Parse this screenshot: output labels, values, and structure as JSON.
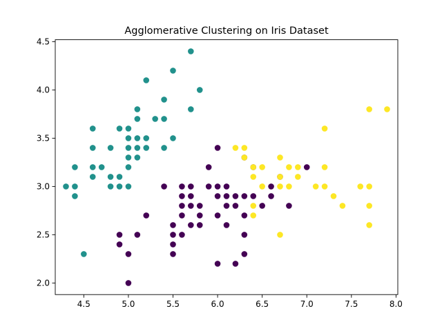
{
  "chart_data": {
    "type": "scatter",
    "title": "Agglomerative Clustering on Iris Dataset",
    "xlabel": "",
    "ylabel": "",
    "xlim": [
      4.18,
      8.02
    ],
    "ylim": [
      1.88,
      4.52
    ],
    "xticks": [
      4.5,
      5.0,
      5.5,
      6.0,
      6.5,
      7.0,
      7.5,
      8.0
    ],
    "yticks": [
      2.0,
      2.5,
      3.0,
      3.5,
      4.0,
      4.5
    ],
    "grid": false,
    "colors": [
      "#440154",
      "#21918c",
      "#fde725"
    ],
    "series": [
      {
        "cluster": 0,
        "points": [
          [
            4.9,
            2.5
          ],
          [
            4.9,
            2.4
          ],
          [
            5.0,
            2.3
          ],
          [
            5.0,
            2.0
          ],
          [
            5.1,
            2.5
          ],
          [
            5.2,
            2.7
          ],
          [
            5.4,
            3.0
          ],
          [
            5.5,
            2.3
          ],
          [
            5.5,
            2.4
          ],
          [
            5.5,
            2.5
          ],
          [
            5.5,
            2.6
          ],
          [
            5.6,
            2.5
          ],
          [
            5.6,
            2.7
          ],
          [
            5.6,
            2.8
          ],
          [
            5.6,
            2.9
          ],
          [
            5.6,
            3.0
          ],
          [
            5.7,
            2.6
          ],
          [
            5.7,
            2.8
          ],
          [
            5.7,
            2.9
          ],
          [
            5.7,
            3.0
          ],
          [
            5.8,
            2.6
          ],
          [
            5.8,
            2.7
          ],
          [
            5.8,
            2.8
          ],
          [
            5.9,
            3.0
          ],
          [
            5.9,
            3.2
          ],
          [
            6.0,
            2.2
          ],
          [
            6.0,
            2.7
          ],
          [
            6.0,
            2.9
          ],
          [
            6.0,
            3.0
          ],
          [
            6.0,
            3.4
          ],
          [
            6.1,
            2.6
          ],
          [
            6.1,
            2.8
          ],
          [
            6.1,
            2.9
          ],
          [
            6.1,
            3.0
          ],
          [
            6.2,
            2.2
          ],
          [
            6.2,
            2.8
          ],
          [
            6.2,
            2.9
          ],
          [
            6.3,
            2.3
          ],
          [
            6.3,
            2.5
          ],
          [
            6.3,
            2.7
          ],
          [
            6.3,
            2.9
          ],
          [
            6.3,
            3.3
          ],
          [
            6.4,
            2.9
          ],
          [
            6.4,
            3.2
          ],
          [
            6.5,
            2.8
          ],
          [
            6.6,
            2.9
          ],
          [
            6.6,
            3.0
          ],
          [
            6.7,
            3.1
          ],
          [
            6.8,
            2.8
          ],
          [
            7.0,
            3.2
          ]
        ]
      },
      {
        "cluster": 1,
        "points": [
          [
            4.3,
            3.0
          ],
          [
            4.4,
            2.9
          ],
          [
            4.4,
            3.0
          ],
          [
            4.4,
            3.2
          ],
          [
            4.5,
            2.3
          ],
          [
            4.6,
            3.1
          ],
          [
            4.6,
            3.2
          ],
          [
            4.6,
            3.4
          ],
          [
            4.6,
            3.6
          ],
          [
            4.7,
            3.2
          ],
          [
            4.8,
            3.0
          ],
          [
            4.8,
            3.1
          ],
          [
            4.8,
            3.4
          ],
          [
            4.9,
            3.0
          ],
          [
            4.9,
            3.1
          ],
          [
            4.9,
            3.6
          ],
          [
            5.0,
            3.0
          ],
          [
            5.0,
            3.2
          ],
          [
            5.0,
            3.3
          ],
          [
            5.0,
            3.4
          ],
          [
            5.0,
            3.5
          ],
          [
            5.0,
            3.6
          ],
          [
            5.1,
            3.3
          ],
          [
            5.1,
            3.4
          ],
          [
            5.1,
            3.5
          ],
          [
            5.1,
            3.7
          ],
          [
            5.1,
            3.8
          ],
          [
            5.2,
            3.4
          ],
          [
            5.2,
            3.5
          ],
          [
            5.2,
            4.1
          ],
          [
            5.3,
            3.7
          ],
          [
            5.4,
            3.4
          ],
          [
            5.4,
            3.7
          ],
          [
            5.4,
            3.9
          ],
          [
            5.5,
            3.5
          ],
          [
            5.5,
            4.2
          ],
          [
            5.7,
            3.8
          ],
          [
            5.7,
            4.4
          ],
          [
            5.8,
            4.0
          ]
        ]
      },
      {
        "cluster": 2,
        "points": [
          [
            6.2,
            3.4
          ],
          [
            6.3,
            3.3
          ],
          [
            6.3,
            3.4
          ],
          [
            6.4,
            2.7
          ],
          [
            6.4,
            2.8
          ],
          [
            6.4,
            3.1
          ],
          [
            6.4,
            3.2
          ],
          [
            6.5,
            3.0
          ],
          [
            6.5,
            3.2
          ],
          [
            6.7,
            2.5
          ],
          [
            6.7,
            3.0
          ],
          [
            6.7,
            3.1
          ],
          [
            6.7,
            3.3
          ],
          [
            6.8,
            3.0
          ],
          [
            6.8,
            3.2
          ],
          [
            6.9,
            3.1
          ],
          [
            6.9,
            3.2
          ],
          [
            7.1,
            3.0
          ],
          [
            7.2,
            3.0
          ],
          [
            7.2,
            3.2
          ],
          [
            7.2,
            3.6
          ],
          [
            7.3,
            2.9
          ],
          [
            7.4,
            2.8
          ],
          [
            7.6,
            3.0
          ],
          [
            7.7,
            2.6
          ],
          [
            7.7,
            2.8
          ],
          [
            7.7,
            3.0
          ],
          [
            7.7,
            3.8
          ],
          [
            7.9,
            3.8
          ]
        ]
      }
    ]
  }
}
